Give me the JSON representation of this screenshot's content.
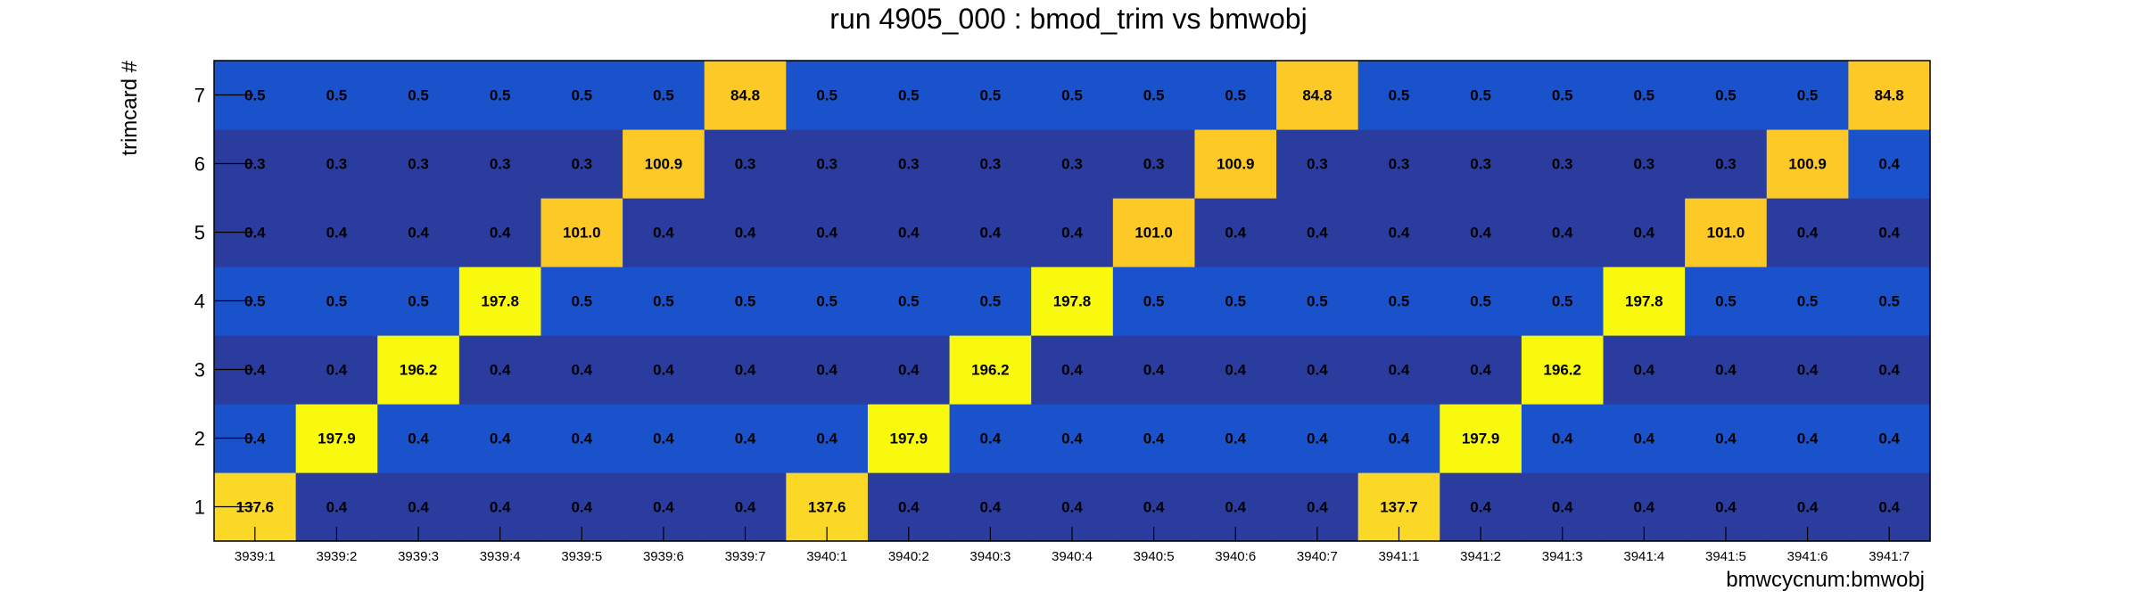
{
  "chart_data": {
    "type": "heatmap",
    "title": "run 4905_000 : bmod_trim vs bmwobj",
    "xlabel": "bmwcycnum:bmwobj",
    "ylabel": "trimcard #",
    "x_categories": [
      "3939:1",
      "3939:2",
      "3939:3",
      "3939:4",
      "3939:5",
      "3939:6",
      "3939:7",
      "3940:1",
      "3940:2",
      "3940:3",
      "3940:4",
      "3940:5",
      "3940:6",
      "3940:7",
      "3941:1",
      "3941:2",
      "3941:3",
      "3941:4",
      "3941:5",
      "3941:6",
      "3941:7"
    ],
    "y_categories": [
      "1",
      "2",
      "3",
      "4",
      "5",
      "6",
      "7"
    ],
    "values": [
      [
        "137.6",
        "0.4",
        "0.4",
        "0.4",
        "0.4",
        "0.4",
        "0.4",
        "137.6",
        "0.4",
        "0.4",
        "0.4",
        "0.4",
        "0.4",
        "0.4",
        "137.7",
        "0.4",
        "0.4",
        "0.4",
        "0.4",
        "0.4",
        "0.4"
      ],
      [
        "0.4",
        "197.9",
        "0.4",
        "0.4",
        "0.4",
        "0.4",
        "0.4",
        "0.4",
        "197.9",
        "0.4",
        "0.4",
        "0.4",
        "0.4",
        "0.4",
        "0.4",
        "197.9",
        "0.4",
        "0.4",
        "0.4",
        "0.4",
        "0.4"
      ],
      [
        "0.4",
        "0.4",
        "196.2",
        "0.4",
        "0.4",
        "0.4",
        "0.4",
        "0.4",
        "0.4",
        "196.2",
        "0.4",
        "0.4",
        "0.4",
        "0.4",
        "0.4",
        "0.4",
        "196.2",
        "0.4",
        "0.4",
        "0.4",
        "0.4"
      ],
      [
        "0.5",
        "0.5",
        "0.5",
        "197.8",
        "0.5",
        "0.5",
        "0.5",
        "0.5",
        "0.5",
        "0.5",
        "197.8",
        "0.5",
        "0.5",
        "0.5",
        "0.5",
        "0.5",
        "0.5",
        "197.8",
        "0.5",
        "0.5",
        "0.5"
      ],
      [
        "0.4",
        "0.4",
        "0.4",
        "0.4",
        "101.0",
        "0.4",
        "0.4",
        "0.4",
        "0.4",
        "0.4",
        "0.4",
        "101.0",
        "0.4",
        "0.4",
        "0.4",
        "0.4",
        "0.4",
        "0.4",
        "101.0",
        "0.4",
        "0.4"
      ],
      [
        "0.3",
        "0.3",
        "0.3",
        "0.3",
        "0.3",
        "100.9",
        "0.3",
        "0.3",
        "0.3",
        "0.3",
        "0.3",
        "0.3",
        "100.9",
        "0.3",
        "0.3",
        "0.3",
        "0.3",
        "0.3",
        "0.3",
        "100.9",
        "0.4"
      ],
      [
        "0.5",
        "0.5",
        "0.5",
        "0.5",
        "0.5",
        "0.5",
        "84.8",
        "0.5",
        "0.5",
        "0.5",
        "0.5",
        "0.5",
        "0.5",
        "84.8",
        "0.5",
        "0.5",
        "0.5",
        "0.5",
        "0.5",
        "0.5",
        "84.8"
      ]
    ],
    "colors": {
      "dark_blue": "#2a3c9e",
      "mid_blue": "#1a52cc",
      "amber": "#fcc926",
      "gold": "#fbd825",
      "yellow": "#f9f90e"
    },
    "grid": false
  }
}
